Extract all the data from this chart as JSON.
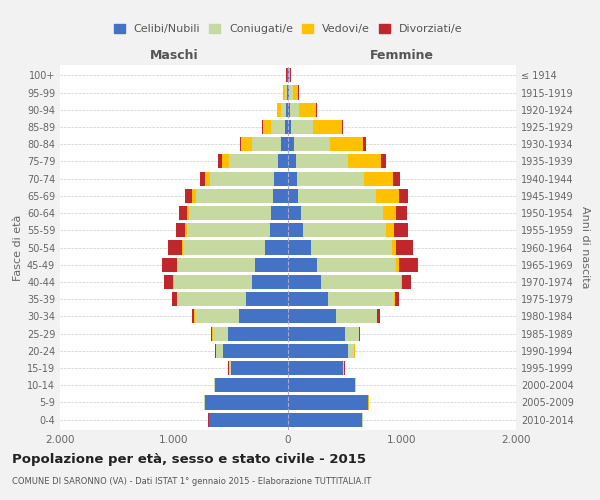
{
  "age_groups": [
    "0-4",
    "5-9",
    "10-14",
    "15-19",
    "20-24",
    "25-29",
    "30-34",
    "35-39",
    "40-44",
    "45-49",
    "50-54",
    "55-59",
    "60-64",
    "65-69",
    "70-74",
    "75-79",
    "80-84",
    "85-89",
    "90-94",
    "95-99",
    "100+"
  ],
  "birth_years": [
    "2010-2014",
    "2005-2009",
    "2000-2004",
    "1995-1999",
    "1990-1994",
    "1985-1989",
    "1980-1984",
    "1975-1979",
    "1970-1974",
    "1965-1969",
    "1960-1964",
    "1955-1959",
    "1950-1954",
    "1945-1949",
    "1940-1944",
    "1935-1939",
    "1930-1934",
    "1925-1929",
    "1920-1924",
    "1915-1919",
    "≤ 1914"
  ],
  "colors": {
    "celibi": "#4472c4",
    "coniugati": "#c5d9a0",
    "vedovi": "#ffc000",
    "divorziati": "#c0272d"
  },
  "maschi": {
    "celibi": [
      690,
      730,
      640,
      500,
      570,
      530,
      430,
      370,
      320,
      290,
      200,
      160,
      150,
      130,
      120,
      90,
      60,
      30,
      15,
      10,
      5
    ],
    "coniugati": [
      5,
      5,
      5,
      15,
      60,
      130,
      390,
      600,
      680,
      680,
      720,
      730,
      720,
      680,
      560,
      430,
      260,
      120,
      50,
      20,
      5
    ],
    "vedovi": [
      2,
      2,
      2,
      2,
      5,
      5,
      5,
      5,
      5,
      5,
      10,
      15,
      20,
      30,
      50,
      60,
      90,
      70,
      30,
      10,
      2
    ],
    "divorziati": [
      2,
      2,
      2,
      5,
      5,
      10,
      20,
      40,
      80,
      130,
      120,
      80,
      70,
      60,
      40,
      30,
      10,
      5,
      5,
      5,
      2
    ]
  },
  "femmine": {
    "celibi": [
      650,
      700,
      590,
      480,
      530,
      500,
      420,
      350,
      290,
      250,
      200,
      130,
      110,
      90,
      80,
      70,
      50,
      30,
      15,
      10,
      5
    ],
    "coniugati": [
      5,
      5,
      5,
      10,
      50,
      120,
      360,
      580,
      700,
      700,
      710,
      730,
      720,
      680,
      590,
      460,
      320,
      190,
      80,
      30,
      5
    ],
    "vedovi": [
      2,
      2,
      2,
      2,
      5,
      5,
      5,
      5,
      10,
      20,
      40,
      70,
      120,
      200,
      250,
      290,
      290,
      250,
      150,
      50,
      10
    ],
    "divorziati": [
      2,
      2,
      2,
      5,
      5,
      10,
      20,
      40,
      80,
      170,
      150,
      120,
      90,
      80,
      60,
      40,
      20,
      10,
      5,
      5,
      2
    ]
  },
  "title": "Popolazione per età, sesso e stato civile - 2015",
  "subtitle": "COMUNE DI SARONNO (VA) - Dati ISTAT 1° gennaio 2015 - Elaborazione TUTTITALIA.IT",
  "ylabel_left": "Fasce di età",
  "ylabel_right": "Anni di nascita",
  "xlabel_left": "Maschi",
  "xlabel_right": "Femmine",
  "xlim": 2000,
  "background_color": "#f2f2f2",
  "plot_background": "#ffffff",
  "grid_color": "#cccccc"
}
